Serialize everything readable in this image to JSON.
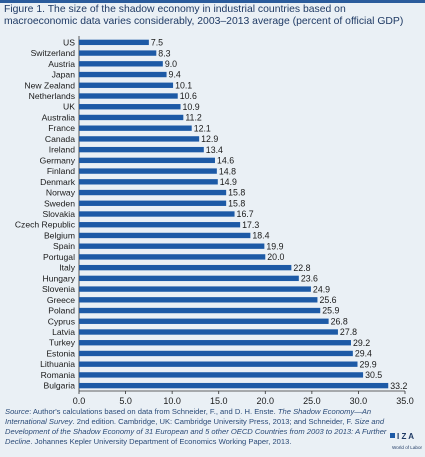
{
  "figure": {
    "title": "Figure 1. The size of the shadow economy in industrial countries based on macroeconomic data varies considerably, 2003–2013 average (percent of official GDP)"
  },
  "source": {
    "label": "Source",
    "text_1": ": Author's calculations based on data from Schneider, F., and D. H. Enste. ",
    "book_title": "The Shadow Economy—An International Survey",
    "text_2": ". 2nd edition. Cambridge, UK: Cambridge University Press, 2013; and Schneider, F. ",
    "paper_title": "Size and Development of the Shadow Economy of 31 European and 5 other OECD Countries from 2003 to 2013: A Further Decline",
    "text_3": ". Johannes Kepler University Department of Economics Working Paper, 2013."
  },
  "logo": {
    "letters": "I Z A",
    "subtitle": "World of Labor"
  },
  "colors": {
    "bar": "#1d5aa6",
    "background": "#eaf0f5",
    "accent": "#2b5c9c",
    "title": "#1f3a64"
  },
  "chart_data": {
    "type": "bar",
    "orientation": "horizontal",
    "categories": [
      "US",
      "Switzerland",
      "Austria",
      "Japan",
      "New Zealand",
      "Netherlands",
      "UK",
      "Australia",
      "France",
      "Canada",
      "Ireland",
      "Germany",
      "Finland",
      "Denmark",
      "Norway",
      "Sweden",
      "Slovakia",
      "Czech Republic",
      "Belgium",
      "Spain",
      "Portugal",
      "Italy",
      "Hungary",
      "Slovenia",
      "Greece",
      "Poland",
      "Cyprus",
      "Latvia",
      "Turkey",
      "Estonia",
      "Lithuania",
      "Romania",
      "Bulgaria"
    ],
    "values": [
      7.5,
      8.3,
      9.0,
      9.4,
      10.1,
      10.6,
      10.9,
      11.2,
      12.1,
      12.9,
      13.4,
      14.6,
      14.8,
      14.9,
      15.8,
      15.8,
      16.7,
      17.3,
      18.4,
      19.9,
      20.0,
      22.8,
      23.6,
      24.9,
      25.6,
      25.9,
      26.8,
      27.8,
      29.2,
      29.4,
      29.9,
      30.5,
      33.2
    ],
    "value_labels": [
      "7.5",
      "8.3",
      "9.0",
      "9.4",
      "10.1",
      "10.6",
      "10.9",
      "11.2",
      "12.1",
      "12.9",
      "13.4",
      "14.6",
      "14.8",
      "14.9",
      "15.8",
      "15.8",
      "16.7",
      "17.3",
      "18.4",
      "19.9",
      "20.0",
      "22.8",
      "23.6",
      "24.9",
      "25.6",
      "25.9",
      "26.8",
      "27.8",
      "29.2",
      "29.4",
      "29.9",
      "30.5",
      "33.2"
    ],
    "xlim": [
      0,
      35
    ],
    "x_ticks": [
      0,
      5,
      10,
      15,
      20,
      25,
      30,
      35
    ],
    "x_tick_labels": [
      "0.0",
      "5.0",
      "10.0",
      "15.0",
      "20.0",
      "25.0",
      "30.0",
      "35.0"
    ],
    "xlabel": "",
    "ylabel": "",
    "grid": false,
    "legend": "none"
  }
}
